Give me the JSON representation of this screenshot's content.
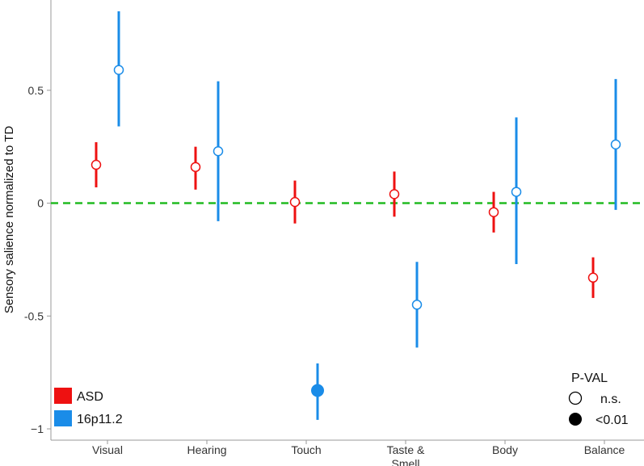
{
  "chart_data": {
    "type": "scatter",
    "ylabel": "Sensory salience normalized to TD",
    "ylim": [
      -1.05,
      0.9
    ],
    "yticks": [
      {
        "value": 0.5,
        "label": "0.5"
      },
      {
        "value": 0,
        "label": "0"
      },
      {
        "value": -0.5,
        "label": "-0.5"
      },
      {
        "value": -1,
        "label": "−1"
      }
    ],
    "categories": [
      [
        "Visual"
      ],
      [
        "Hearing"
      ],
      [
        "Touch"
      ],
      [
        "Taste &",
        "Smell"
      ],
      [
        "Body"
      ],
      [
        "Balance"
      ]
    ],
    "reference_line": {
      "value": 0,
      "color": "#22bb22",
      "style": "dashed"
    },
    "series": [
      {
        "name": "ASD",
        "color": "#ee1111",
        "points": [
          {
            "y": 0.17,
            "low": 0.07,
            "high": 0.27,
            "significant": false
          },
          {
            "y": 0.16,
            "low": 0.06,
            "high": 0.25,
            "significant": false
          },
          {
            "y": 0.005,
            "low": -0.09,
            "high": 0.1,
            "significant": false
          },
          {
            "y": 0.04,
            "low": -0.06,
            "high": 0.14,
            "significant": false
          },
          {
            "y": -0.04,
            "low": -0.13,
            "high": 0.05,
            "significant": false
          },
          {
            "y": -0.33,
            "low": -0.42,
            "high": -0.24,
            "significant": false
          }
        ]
      },
      {
        "name": "16p11.2",
        "color": "#1a8ce8",
        "points": [
          {
            "y": 0.59,
            "low": 0.34,
            "high": 0.85,
            "significant": false
          },
          {
            "y": 0.23,
            "low": -0.08,
            "high": 0.54,
            "significant": false
          },
          {
            "y": -0.83,
            "low": -0.96,
            "high": -0.71,
            "significant": true
          },
          {
            "y": -0.45,
            "low": -0.64,
            "high": -0.26,
            "significant": false
          },
          {
            "y": 0.05,
            "low": -0.27,
            "high": 0.38,
            "significant": false
          },
          {
            "y": 0.26,
            "low": -0.03,
            "high": 0.55,
            "significant": false
          }
        ]
      }
    ],
    "legend": {
      "placement": "bottom-left",
      "items": [
        {
          "label": "ASD",
          "color": "#ee1111"
        },
        {
          "label": "16p11.2",
          "color": "#1a8ce8"
        }
      ]
    },
    "pval_legend": {
      "placement": "bottom-right",
      "title": "P-VAL",
      "items": [
        {
          "label": "n.s.",
          "filled": false
        },
        {
          "label": "<0.01",
          "filled": true
        }
      ]
    }
  }
}
